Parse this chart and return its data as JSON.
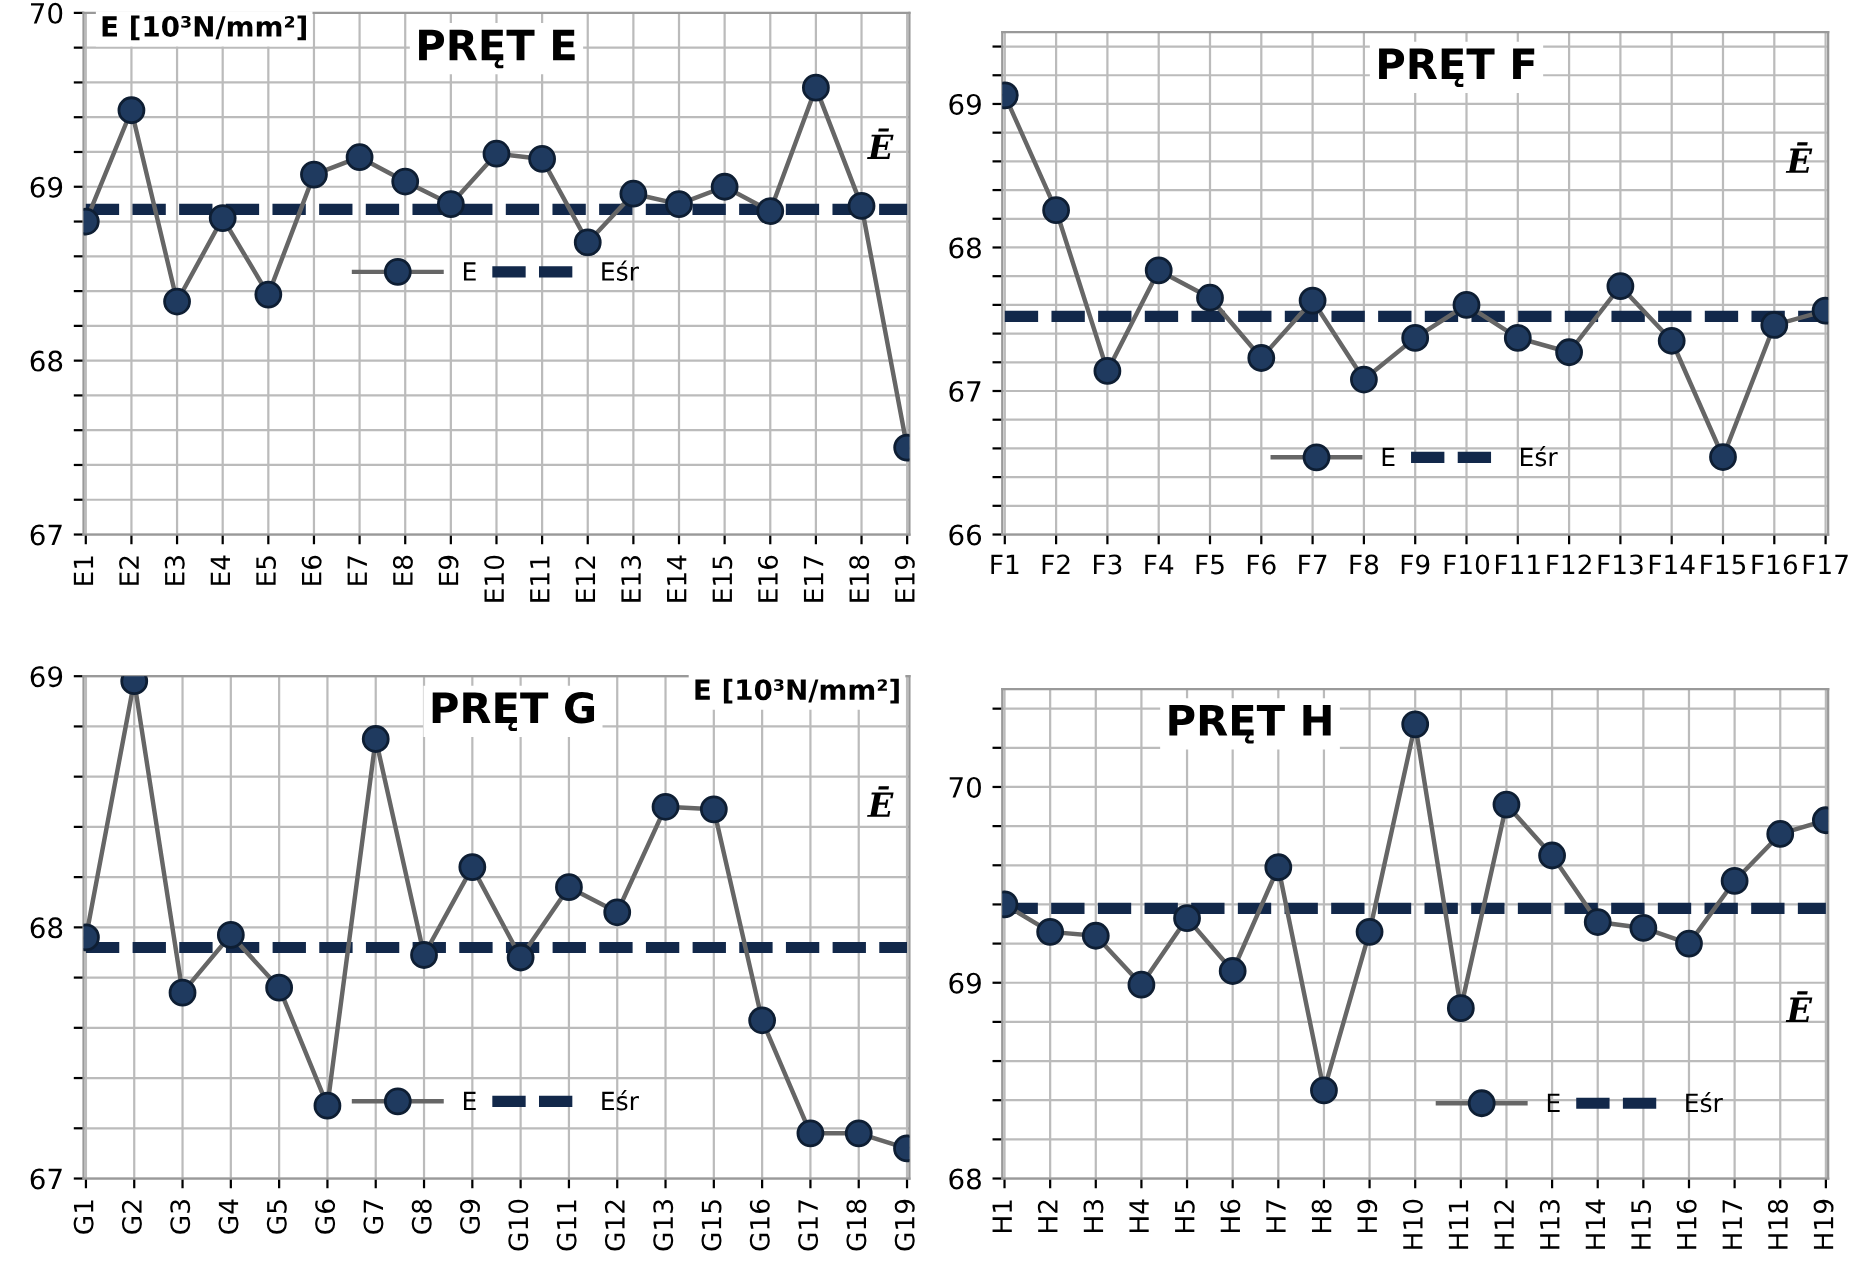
{
  "chart_data": [
    {
      "type": "line",
      "title": "PRĘT E",
      "ylabel": "E [10³N/mm²]",
      "annotations": [
        "Ē"
      ],
      "categories": [
        "E1",
        "E2",
        "E3",
        "E4",
        "E5",
        "E6",
        "E7",
        "E8",
        "E9",
        "E10",
        "E11",
        "E12",
        "E13",
        "E14",
        "E15",
        "E16",
        "E17",
        "E18",
        "E19"
      ],
      "series": [
        {
          "name": "E",
          "color": "#1f3a5f",
          "marker": "circle",
          "line_style": "solid",
          "values": [
            68.8,
            69.44,
            68.34,
            68.82,
            68.38,
            69.07,
            69.17,
            69.03,
            68.9,
            69.19,
            69.16,
            68.68,
            68.96,
            68.9,
            69.0,
            68.86,
            69.57,
            68.89,
            67.5
          ]
        },
        {
          "name": "Eśr",
          "color": "#12284a",
          "marker": "none",
          "line_style": "dashed",
          "values": [
            68.87,
            68.87,
            68.87,
            68.87,
            68.87,
            68.87,
            68.87,
            68.87,
            68.87,
            68.87,
            68.87,
            68.87,
            68.87,
            68.87,
            68.87,
            68.87,
            68.87,
            68.87,
            68.87
          ]
        }
      ],
      "ylim": [
        67,
        70
      ],
      "yticks": [
        67,
        {
          "value": 67.2,
          "label": null
        },
        {
          "value": 67.4,
          "label": null
        },
        {
          "value": 67.6,
          "label": null
        },
        {
          "value": 67.8,
          "label": null
        },
        68,
        {
          "value": 68.2,
          "label": null
        },
        {
          "value": 68.4,
          "label": null
        },
        {
          "value": 68.6,
          "label": null
        },
        {
          "value": 68.8,
          "label": null
        },
        69,
        {
          "value": 69.2,
          "label": null
        },
        {
          "value": 69.4,
          "label": null
        },
        {
          "value": 69.6,
          "label": null
        },
        {
          "value": 69.8,
          "label": null
        },
        70
      ],
      "grid": true,
      "legend": "center"
    },
    {
      "type": "line",
      "title": "PRĘT F",
      "annotations": [
        "Ē"
      ],
      "categories": [
        "F1",
        "F2",
        "F3",
        "F4",
        "F5",
        "F6",
        "F7",
        "F8",
        "F9",
        "F10",
        "F11",
        "F12",
        "F13",
        "F14",
        "F15",
        "F16",
        "F17"
      ],
      "series": [
        {
          "name": "E",
          "color": "#1f3a5f",
          "marker": "circle",
          "line_style": "solid",
          "values": [
            69.06,
            68.26,
            67.14,
            67.84,
            67.65,
            67.23,
            67.63,
            67.08,
            67.37,
            67.6,
            67.37,
            67.27,
            67.73,
            67.35,
            66.54,
            67.46,
            67.56
          ]
        },
        {
          "name": "Eśr",
          "color": "#12284a",
          "marker": "none",
          "line_style": "dashed",
          "values": [
            67.52,
            67.52,
            67.52,
            67.52,
            67.52,
            67.52,
            67.52,
            67.52,
            67.52,
            67.52,
            67.52,
            67.52,
            67.52,
            67.52,
            67.52,
            67.52,
            67.52
          ]
        }
      ],
      "ylim": [
        66,
        69.5
      ],
      "yticks": [
        66,
        {
          "value": 66.2,
          "label": null
        },
        {
          "value": 66.4,
          "label": null
        },
        {
          "value": 66.6,
          "label": null
        },
        {
          "value": 66.8,
          "label": null
        },
        67,
        {
          "value": 67.2,
          "label": null
        },
        {
          "value": 67.4,
          "label": null
        },
        {
          "value": 67.6,
          "label": null
        },
        {
          "value": 67.8,
          "label": null
        },
        68,
        {
          "value": 68.2,
          "label": null
        },
        {
          "value": 68.4,
          "label": null
        },
        {
          "value": 68.6,
          "label": null
        },
        {
          "value": 68.8,
          "label": null
        },
        69,
        {
          "value": 69.2,
          "label": null
        },
        {
          "value": 69.4,
          "label": null
        }
      ],
      "grid": true,
      "legend": "lower center"
    },
    {
      "type": "line",
      "title": "PRĘT G",
      "ylabel": "E [10³N/mm²]",
      "annotations": [
        "Ē"
      ],
      "categories": [
        "G1",
        "G2",
        "G3",
        "G4",
        "G5",
        "G6",
        "G7",
        "G8",
        "G9",
        "G10",
        "G11",
        "G12",
        "G13",
        "G15",
        "G16",
        "G17",
        "G18",
        "G19"
      ],
      "series": [
        {
          "name": "E",
          "color": "#1f3a5f",
          "marker": "circle",
          "line_style": "solid",
          "values": [
            67.96,
            68.98,
            67.74,
            67.97,
            67.76,
            67.29,
            68.75,
            67.89,
            68.24,
            67.88,
            68.16,
            68.06,
            68.48,
            68.47,
            67.63,
            67.18,
            67.18,
            67.12
          ]
        },
        {
          "name": "Eśr",
          "color": "#12284a",
          "marker": "none",
          "line_style": "dashed",
          "values": [
            67.92,
            67.92,
            67.92,
            67.92,
            67.92,
            67.92,
            67.92,
            67.92,
            67.92,
            67.92,
            67.92,
            67.92,
            67.92,
            67.92,
            67.92,
            67.92,
            67.92,
            67.92
          ]
        }
      ],
      "ylim": [
        67,
        69
      ],
      "yticks": [
        67,
        {
          "value": 67.2,
          "label": null
        },
        {
          "value": 67.4,
          "label": null
        },
        {
          "value": 67.6,
          "label": null
        },
        {
          "value": 67.8,
          "label": null
        },
        68,
        {
          "value": 68.2,
          "label": null
        },
        {
          "value": 68.4,
          "label": null
        },
        {
          "value": 68.6,
          "label": null
        },
        {
          "value": 68.8,
          "label": null
        },
        69
      ],
      "grid": true,
      "legend": "lower center"
    },
    {
      "type": "line",
      "title": "PRĘT H",
      "annotations": [
        "Ē"
      ],
      "categories": [
        "H1",
        "H2",
        "H3",
        "H4",
        "H5",
        "H6",
        "H7",
        "H8",
        "H9",
        "H10",
        "H11",
        "H12",
        "H13",
        "H14",
        "H15",
        "H16",
        "H17",
        "H18",
        "H19"
      ],
      "series": [
        {
          "name": "E",
          "color": "#1f3a5f",
          "marker": "circle",
          "line_style": "solid",
          "values": [
            69.4,
            69.26,
            69.24,
            68.99,
            69.33,
            69.06,
            69.59,
            68.45,
            69.26,
            70.32,
            68.87,
            69.91,
            69.65,
            69.31,
            69.28,
            69.2,
            69.52,
            69.76,
            69.83
          ]
        },
        {
          "name": "Eśr",
          "color": "#12284a",
          "marker": "none",
          "line_style": "dashed",
          "values": [
            69.38,
            69.38,
            69.38,
            69.38,
            69.38,
            69.38,
            69.38,
            69.38,
            69.38,
            69.38,
            69.38,
            69.38,
            69.38,
            69.38,
            69.38,
            69.38,
            69.38,
            69.38,
            69.38
          ]
        }
      ],
      "ylim": [
        68,
        70.5
      ],
      "yticks": [
        68,
        {
          "value": 68.2,
          "label": null
        },
        {
          "value": 68.4,
          "label": null
        },
        {
          "value": 68.6,
          "label": null
        },
        {
          "value": 68.8,
          "label": null
        },
        69,
        {
          "value": 69.2,
          "label": null
        },
        {
          "value": 69.4,
          "label": null
        },
        {
          "value": 69.6,
          "label": null
        },
        {
          "value": 69.8,
          "label": null
        },
        70,
        {
          "value": 70.2,
          "label": null
        },
        {
          "value": 70.4,
          "label": null
        }
      ],
      "grid": true,
      "legend": "lower center"
    }
  ]
}
